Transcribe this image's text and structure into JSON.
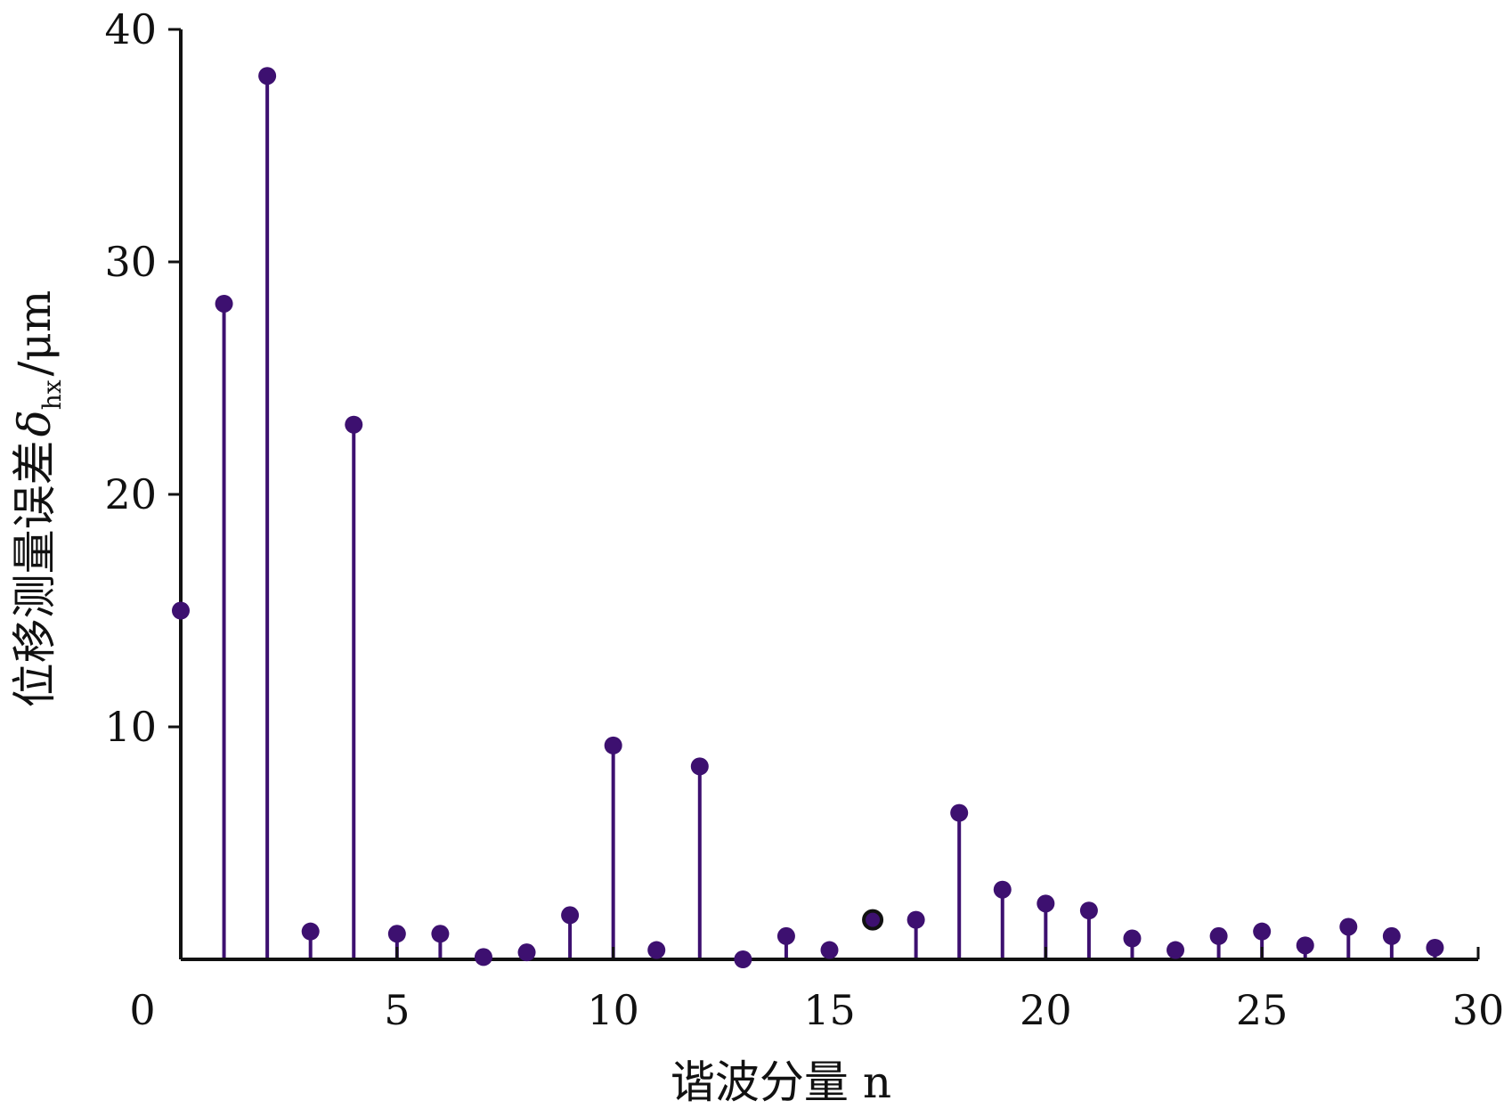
{
  "chart_data": {
    "type": "stem",
    "xlabel": "谐波分量 n",
    "ylabel": "位移测量误差 δhx /μm",
    "ylabel_parts": {
      "main": "位移测量误差",
      "symbol": "δ",
      "subscript": "hx",
      "unit": "/μm"
    },
    "xlim": [
      0,
      30
    ],
    "ylim": [
      0,
      40
    ],
    "x_ticks": [
      0,
      5,
      10,
      15,
      20,
      25,
      30
    ],
    "y_ticks": [
      10,
      20,
      30,
      40
    ],
    "x_tick_labels": [
      "0",
      "5",
      "10",
      "15",
      "20",
      "25",
      "30"
    ],
    "y_tick_labels": [
      "10",
      "20",
      "30",
      "40"
    ],
    "grid": false,
    "colors": {
      "stem": "#3d1070",
      "marker": "#3d1070",
      "highlight_fill": "#3d1070",
      "highlight_edge": "#111111",
      "axis": "#111111"
    },
    "series": [
      {
        "x": [
          0,
          1,
          2,
          3,
          4,
          5,
          6,
          7,
          8,
          9,
          10,
          11,
          12,
          13,
          14,
          15,
          16,
          17,
          18,
          19,
          20,
          21,
          22,
          23,
          24,
          25,
          26,
          27,
          28,
          29
        ],
        "values": [
          15.0,
          28.2,
          38.0,
          1.2,
          23.0,
          1.1,
          1.1,
          0.1,
          0.3,
          1.9,
          9.2,
          0.4,
          8.3,
          0.0,
          1.0,
          0.4,
          1.7,
          1.7,
          6.3,
          3.0,
          2.4,
          2.1,
          0.9,
          0.4,
          1.0,
          1.2,
          0.6,
          1.4,
          1.0,
          0.5
        ],
        "highlight_index": 16
      }
    ]
  }
}
